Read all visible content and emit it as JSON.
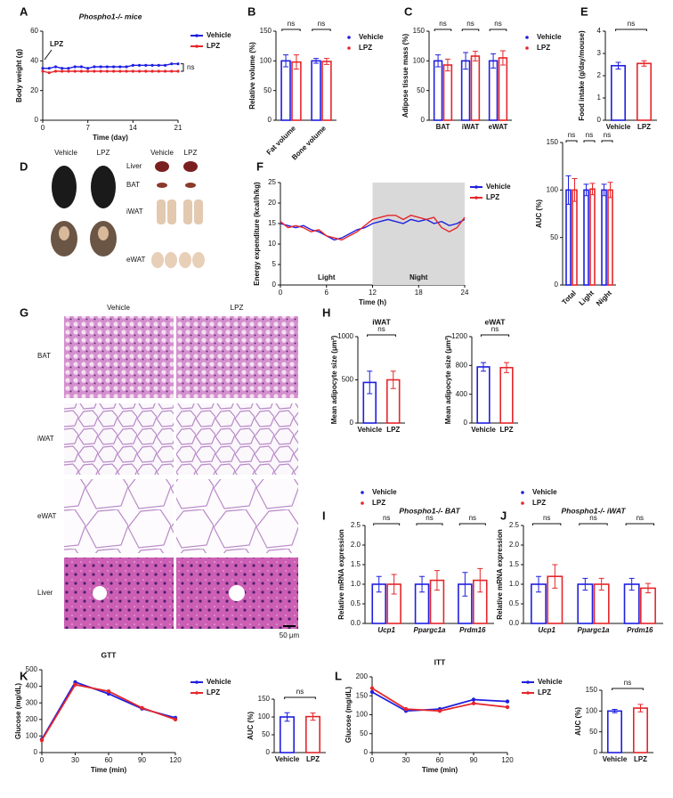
{
  "panel_letters": [
    "A",
    "B",
    "C",
    "E",
    "D",
    "F",
    "G",
    "H",
    "I",
    "J",
    "K",
    "L"
  ],
  "images": {
    "D": {
      "col_labels": [
        "Vehicle",
        "LPZ",
        "Vehicle",
        "LPZ"
      ],
      "row_labels": [
        "Liver",
        "BAT",
        "iWAT",
        "eWAT"
      ]
    },
    "G": {
      "col_labels": [
        "Vehicle",
        "LPZ"
      ],
      "row_labels": [
        "BAT",
        "iWAT",
        "eWAT",
        "Liver"
      ],
      "scale": "50 μm"
    }
  },
  "chart_data": [
    {
      "type": "line",
      "title": "Phospho1-/- mice",
      "y_label": "Body weight (g)",
      "x_label": "Time (day)",
      "x": [
        0,
        1,
        2,
        3,
        4,
        5,
        6,
        7,
        8,
        9,
        10,
        11,
        12,
        13,
        14,
        15,
        16,
        17,
        18,
        19,
        20,
        21
      ],
      "xlim": [
        0,
        21
      ],
      "xticks": [
        0,
        7,
        14,
        21
      ],
      "ylim": [
        0,
        60
      ],
      "yticks": [
        0,
        20,
        40,
        60
      ],
      "arrow_label": "LPZ",
      "bracket_label": "ns",
      "series": [
        {
          "name": "Vehicle",
          "color": "#1f1fe0",
          "values": [
            35,
            35,
            36,
            35,
            35,
            36,
            36,
            35,
            36,
            36,
            36,
            36,
            36,
            36,
            37,
            37,
            37,
            37,
            37,
            37,
            38,
            38
          ]
        },
        {
          "name": "LPZ",
          "color": "#e5262b",
          "values": [
            33,
            32,
            33,
            33,
            33,
            33,
            33,
            33,
            33,
            33,
            33,
            33,
            33,
            33,
            33,
            33,
            33,
            33,
            33,
            33,
            33,
            33
          ]
        }
      ]
    },
    {
      "type": "bar",
      "y_label": "Relative volume (%)",
      "categories": [
        "Fat volume",
        "Bone volume"
      ],
      "rotate_labels": true,
      "ylim": [
        0,
        150
      ],
      "yticks": [
        0,
        50,
        100,
        150
      ],
      "annotations": [
        "ns",
        "ns"
      ],
      "series": [
        {
          "name": "Vehicle",
          "color": "#1f1fe0",
          "values": [
            100,
            100
          ],
          "errors": [
            10,
            4
          ]
        },
        {
          "name": "LPZ",
          "color": "#e5262b",
          "values": [
            98,
            99
          ],
          "errors": [
            12,
            5
          ]
        }
      ]
    },
    {
      "type": "bar",
      "y_label": "Adipose tissue mass (%)",
      "categories": [
        "BAT",
        "iWAT",
        "eWAT"
      ],
      "ylim": [
        0,
        150
      ],
      "yticks": [
        0,
        50,
        100,
        150
      ],
      "annotations": [
        "ns",
        "ns",
        "ns"
      ],
      "series": [
        {
          "name": "Vehicle",
          "color": "#1f1fe0",
          "values": [
            100,
            100,
            100
          ],
          "errors": [
            10,
            14,
            12
          ]
        },
        {
          "name": "LPZ",
          "color": "#e5262b",
          "values": [
            93,
            108,
            105
          ],
          "errors": [
            10,
            8,
            12
          ]
        }
      ]
    },
    {
      "type": "bar",
      "y_label": "Food intake (g/day/mouse)",
      "categories": [
        "Vehicle",
        "LPZ"
      ],
      "ylim": [
        0,
        4
      ],
      "yticks": [
        0,
        1,
        2,
        3,
        4
      ],
      "annotations": [
        "ns"
      ],
      "series": [
        {
          "colors": [
            "#1f1fe0",
            "#e5262b"
          ],
          "values": [
            2.45,
            2.55
          ],
          "errors": [
            0.15,
            0.12
          ]
        }
      ]
    },
    {
      "type": "line",
      "y_label": "Energy expenditure (kcal/h/kg)",
      "x_label": "Time (h)",
      "x": [
        0,
        1,
        2,
        3,
        4,
        5,
        6,
        7,
        8,
        9,
        10,
        11,
        12,
        13,
        14,
        15,
        16,
        17,
        18,
        19,
        20,
        21,
        22,
        23,
        24
      ],
      "xlim": [
        0,
        24
      ],
      "xticks": [
        0,
        6,
        12,
        18,
        24
      ],
      "ylim": [
        0,
        25
      ],
      "yticks": [
        0,
        5,
        10,
        15,
        20,
        25
      ],
      "shade": [
        12,
        24
      ],
      "region_labels": [
        "Light",
        "Night"
      ],
      "series": [
        {
          "name": "Vehicle",
          "color": "#1f1fe0",
          "values": [
            15,
            14.5,
            14,
            14.5,
            13.5,
            13,
            12,
            11,
            11.5,
            12.5,
            13.5,
            14,
            15,
            15.5,
            16,
            15.5,
            15,
            16,
            15.5,
            16,
            15,
            15.5,
            14.5,
            15,
            16
          ]
        },
        {
          "name": "LPZ",
          "color": "#e5262b",
          "values": [
            15.5,
            14,
            14.5,
            14,
            13,
            13.5,
            12,
            11.5,
            11,
            12,
            13,
            14.5,
            16,
            16.5,
            17,
            17,
            16,
            17,
            16.5,
            16,
            16.5,
            14,
            13,
            14,
            16.5
          ]
        }
      ]
    },
    {
      "type": "bar",
      "y_label": "AUC (%)",
      "categories": [
        "Total",
        "Light",
        "Night"
      ],
      "rotate_labels": true,
      "ylim": [
        0,
        150
      ],
      "yticks": [
        0,
        50,
        100,
        150
      ],
      "annotations": [
        "ns",
        "ns",
        "ns"
      ],
      "series": [
        {
          "color": "#1f1fe0",
          "values": [
            100,
            100,
            100
          ],
          "errors": [
            15,
            6,
            6
          ]
        },
        {
          "color": "#e5262b",
          "values": [
            100,
            101,
            100
          ],
          "errors": [
            12,
            6,
            8
          ]
        }
      ]
    },
    {
      "type": "bar",
      "title": "iWAT",
      "y_label": "Mean adipocyte size (μm²)",
      "categories": [
        "Vehicle",
        "LPZ"
      ],
      "ylim": [
        0,
        1000
      ],
      "yticks": [
        0,
        500,
        1000
      ],
      "annotations": [
        "ns"
      ],
      "series": [
        {
          "colors": [
            "#1f1fe0",
            "#e5262b"
          ],
          "values": [
            470,
            500
          ],
          "errors": [
            130,
            100
          ]
        }
      ]
    },
    {
      "type": "bar",
      "title": "eWAT",
      "y_label": "Mean adipocyte size (μm²)",
      "categories": [
        "Vehicle",
        "LPZ"
      ],
      "ylim": [
        0,
        1200
      ],
      "yticks": [
        0,
        400,
        800,
        1200
      ],
      "annotations": [
        "ns"
      ],
      "series": [
        {
          "colors": [
            "#1f1fe0",
            "#e5262b"
          ],
          "values": [
            780,
            770
          ],
          "errors": [
            60,
            70
          ]
        }
      ]
    },
    {
      "type": "bar",
      "title": "Phospho1-/- BAT",
      "y_label": "Relative mRNA expression",
      "categories": [
        "Ucp1",
        "Ppargc1a",
        "Prdm16"
      ],
      "italic_labels": true,
      "ylim": [
        0,
        2.5
      ],
      "yticks": [
        {
          "value": 0,
          "label": "0.0"
        },
        {
          "value": 0.5,
          "label": "0.5"
        },
        {
          "value": 1,
          "label": "1.0"
        },
        {
          "value": 1.5,
          "label": "1.5"
        },
        {
          "value": 2,
          "label": "2.0"
        },
        {
          "value": 2.5,
          "label": "2.5"
        }
      ],
      "annotations": [
        "ns",
        "ns",
        "ns"
      ],
      "series": [
        {
          "name": "Vehicle",
          "color": "#1f1fe0",
          "values": [
            1,
            1,
            1
          ],
          "errors": [
            0.2,
            0.2,
            0.3
          ]
        },
        {
          "name": "LPZ",
          "color": "#e5262b",
          "values": [
            1,
            1.1,
            1.1
          ],
          "errors": [
            0.25,
            0.25,
            0.3
          ]
        }
      ]
    },
    {
      "type": "bar",
      "title": "Phospho1-/- iWAT",
      "y_label": "Relative mRNA expression",
      "categories": [
        "Ucp1",
        "Ppargc1a",
        "Prdm16"
      ],
      "italic_labels": true,
      "ylim": [
        0,
        2.5
      ],
      "yticks": [
        {
          "value": 0,
          "label": "0.0"
        },
        {
          "value": 0.5,
          "label": "0.5"
        },
        {
          "value": 1,
          "label": "1.0"
        },
        {
          "value": 1.5,
          "label": "1.5"
        },
        {
          "value": 2,
          "label": "2.0"
        },
        {
          "value": 2.5,
          "label": "2.5"
        }
      ],
      "annotations": [
        "ns",
        "ns",
        "ns"
      ],
      "series": [
        {
          "name": "Vehicle",
          "color": "#1f1fe0",
          "values": [
            1,
            1,
            1
          ],
          "errors": [
            0.2,
            0.15,
            0.15
          ]
        },
        {
          "name": "LPZ",
          "color": "#e5262b",
          "values": [
            1.2,
            1,
            0.9
          ],
          "errors": [
            0.3,
            0.15,
            0.12
          ]
        }
      ]
    },
    {
      "type": "line",
      "title": "GTT",
      "y_label": "Glucose (mg/dL)",
      "x_label": "Time (min)",
      "x": [
        0,
        30,
        60,
        90,
        120
      ],
      "xlim": [
        0,
        120
      ],
      "xticks": [
        0,
        30,
        60,
        90,
        120
      ],
      "ylim": [
        0,
        500
      ],
      "yticks": [
        0,
        100,
        200,
        300,
        400,
        500
      ],
      "markers": true,
      "series": [
        {
          "name": "Vehicle",
          "color": "#1f1fe0",
          "values": [
            80,
            425,
            355,
            265,
            210
          ]
        },
        {
          "name": "LPZ",
          "color": "#e5262b",
          "values": [
            75,
            410,
            370,
            270,
            200
          ]
        }
      ]
    },
    {
      "type": "bar",
      "y_label": "AUC (%)",
      "categories": [
        "Vehicle",
        "LPZ"
      ],
      "ylim": [
        0,
        150
      ],
      "yticks": [
        0,
        50,
        100,
        150
      ],
      "annotations": [
        "ns"
      ],
      "series": [
        {
          "colors": [
            "#1f1fe0",
            "#e5262b"
          ],
          "values": [
            100,
            101
          ],
          "errors": [
            12,
            10
          ]
        }
      ]
    },
    {
      "type": "line",
      "title": "ITT",
      "y_label": "Glucose (mg/dL)",
      "x_label": "Time (min)",
      "x": [
        0,
        30,
        60,
        90,
        120
      ],
      "xlim": [
        0,
        120
      ],
      "xticks": [
        0,
        30,
        60,
        90,
        120
      ],
      "ylim": [
        0,
        200
      ],
      "yticks": [
        0,
        50,
        100,
        150,
        200
      ],
      "markers": true,
      "series": [
        {
          "name": "Vehicle",
          "color": "#1f1fe0",
          "values": [
            160,
            110,
            115,
            140,
            135
          ]
        },
        {
          "name": "LPZ",
          "color": "#e5262b",
          "values": [
            170,
            115,
            110,
            130,
            120
          ]
        }
      ]
    },
    {
      "type": "bar",
      "y_label": "AUC (%)",
      "categories": [
        "Vehicle",
        "LPZ"
      ],
      "ylim": [
        0,
        150
      ],
      "yticks": [
        0,
        50,
        100,
        150
      ],
      "annotations": [
        "ns"
      ],
      "series": [
        {
          "colors": [
            "#1f1fe0",
            "#e5262b"
          ],
          "values": [
            100,
            107
          ],
          "errors": [
            4,
            9
          ]
        }
      ]
    }
  ]
}
